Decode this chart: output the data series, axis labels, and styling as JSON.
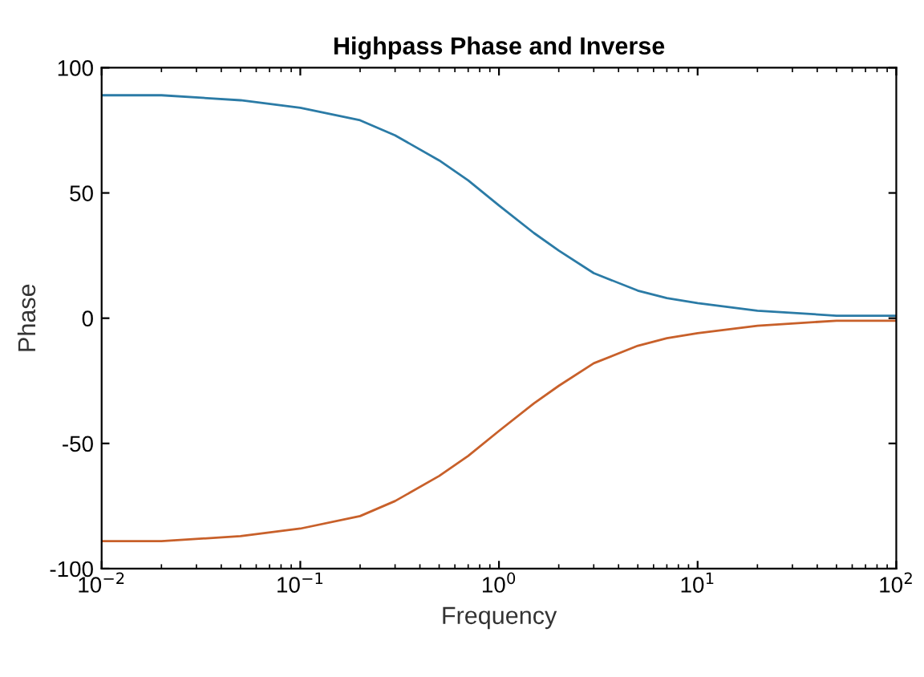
{
  "chart_data": {
    "type": "line",
    "title": "Highpass Phase and Inverse",
    "xlabel": "Frequency",
    "ylabel": "Phase",
    "log": "x",
    "x": [
      0.01,
      0.02,
      0.05,
      0.1,
      0.2,
      0.3,
      0.5,
      0.7,
      1,
      1.5,
      2,
      3,
      5,
      7,
      10,
      20,
      50,
      100
    ],
    "series": [
      {
        "color": "#2b7ba6",
        "values": [
          89,
          89,
          87,
          84,
          79,
          73,
          63,
          55,
          45,
          34,
          27,
          18,
          11,
          8,
          6,
          3,
          1,
          1
        ]
      },
      {
        "color": "#c8602a",
        "values": [
          -89,
          -89,
          -87,
          -84,
          -79,
          -73,
          -63,
          -55,
          -45,
          -34,
          -27,
          -18,
          -11,
          -8,
          -6,
          -3,
          -1,
          -1
        ]
      }
    ],
    "xlim": [
      0.01,
      100
    ],
    "xticks": [
      {
        "value": 0.01,
        "label": "10$^{−2}$"
      },
      {
        "value": 0.1,
        "label": "10$^{−1}$"
      },
      {
        "value": 1,
        "label": "10$^{0}$"
      },
      {
        "value": 10,
        "label": "10$^{1}$"
      },
      {
        "value": 100,
        "label": "10$^{2}$"
      }
    ],
    "ylim": [
      -100,
      100
    ],
    "yticks": [
      -100,
      -50,
      0,
      50,
      100
    ],
    "grid": false,
    "legend": false,
    "marker": "none",
    "line_style": "solid"
  }
}
